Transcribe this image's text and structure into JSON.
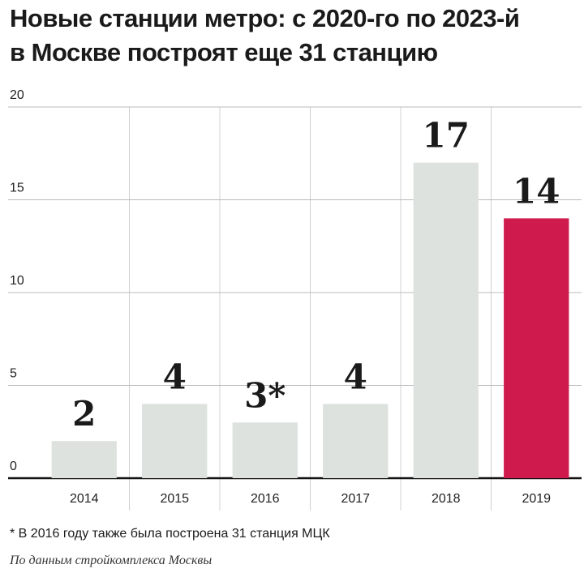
{
  "chart_data": {
    "type": "bar",
    "title": "Новые станции метро: с 2020-го по 2023-й в Москве построят еще 31 станцию",
    "categories": [
      "2014",
      "2015",
      "2016",
      "2017",
      "2018",
      "2019"
    ],
    "values": [
      2,
      4,
      3,
      4,
      17,
      14
    ],
    "value_labels": [
      "2",
      "4",
      "3*",
      "4",
      "17",
      "14"
    ],
    "colors": [
      "#dde2de",
      "#dde2de",
      "#dde2de",
      "#dde2de",
      "#dde2de",
      "#cf1a4e"
    ],
    "ylim": [
      0,
      20
    ],
    "yticks": [
      0,
      5,
      10,
      15,
      20
    ],
    "grid": true,
    "footnote": "* В 2016 году также была построена 31 станция МЦК",
    "source": "По данным стройкомплекса Москвы"
  }
}
